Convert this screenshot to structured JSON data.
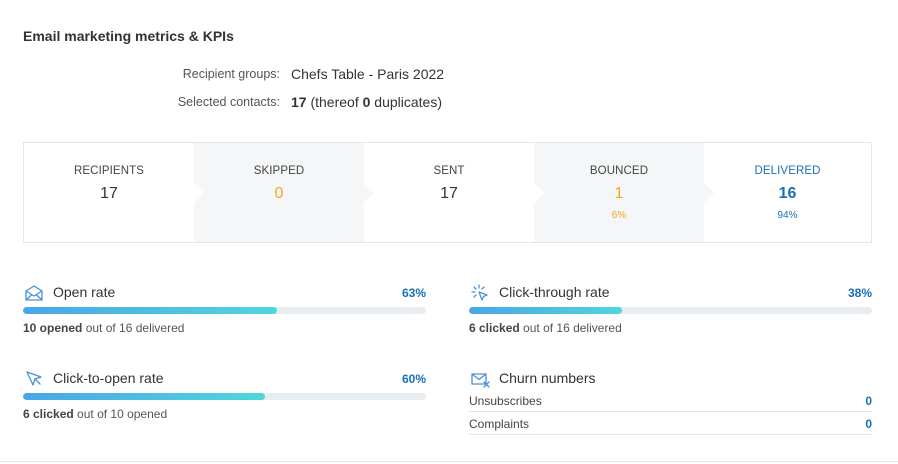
{
  "title": "Email marketing metrics & KPIs",
  "meta": {
    "recipient_groups_label": "Recipient groups:",
    "recipient_groups_value": "Chefs Table - Paris 2022",
    "selected_contacts_label": "Selected contacts:",
    "selected_contacts_count": "17",
    "thereof_prefix": "(thereof",
    "duplicates_count": "0",
    "duplicates_suffix": "duplicates)"
  },
  "funnel": [
    {
      "label": "RECIPIENTS",
      "value": "17",
      "pct": "",
      "color": "#333333"
    },
    {
      "label": "SKIPPED",
      "value": "0",
      "pct": "",
      "color": "#f5a623"
    },
    {
      "label": "SENT",
      "value": "17",
      "pct": "",
      "color": "#333333"
    },
    {
      "label": "BOUNCED",
      "value": "1",
      "pct": "6%",
      "color": "#f5a623"
    },
    {
      "label": "DELIVERED",
      "value": "16",
      "pct": "94%",
      "color": "#1a6fb5"
    }
  ],
  "metrics": {
    "open_rate": {
      "icon": "envelope-open-icon",
      "title": "Open rate",
      "pct": "63%",
      "fraction": 0.63,
      "sub_bold": "10 opened",
      "sub_rest": "out of 16 delivered"
    },
    "click_through_rate": {
      "icon": "click-burst-icon",
      "title": "Click-through rate",
      "pct": "38%",
      "fraction": 0.38,
      "sub_bold": "6 clicked",
      "sub_rest": "out of 16 delivered"
    },
    "click_to_open_rate": {
      "icon": "cursor-click-icon",
      "title": "Click-to-open rate",
      "pct": "60%",
      "fraction": 0.6,
      "sub_bold": "6 clicked",
      "sub_rest": "out of 10 opened"
    },
    "churn": {
      "icon": "envelope-x-icon",
      "title": "Churn numbers",
      "rows": [
        {
          "label": "Unsubscribes",
          "value": "0"
        },
        {
          "label": "Complaints",
          "value": "0"
        }
      ]
    }
  },
  "colors": {
    "accent_blue": "#1a6fb5",
    "warning_orange": "#f5a623",
    "bar_start": "#4aa6e6",
    "bar_end": "#4fd6dc"
  }
}
